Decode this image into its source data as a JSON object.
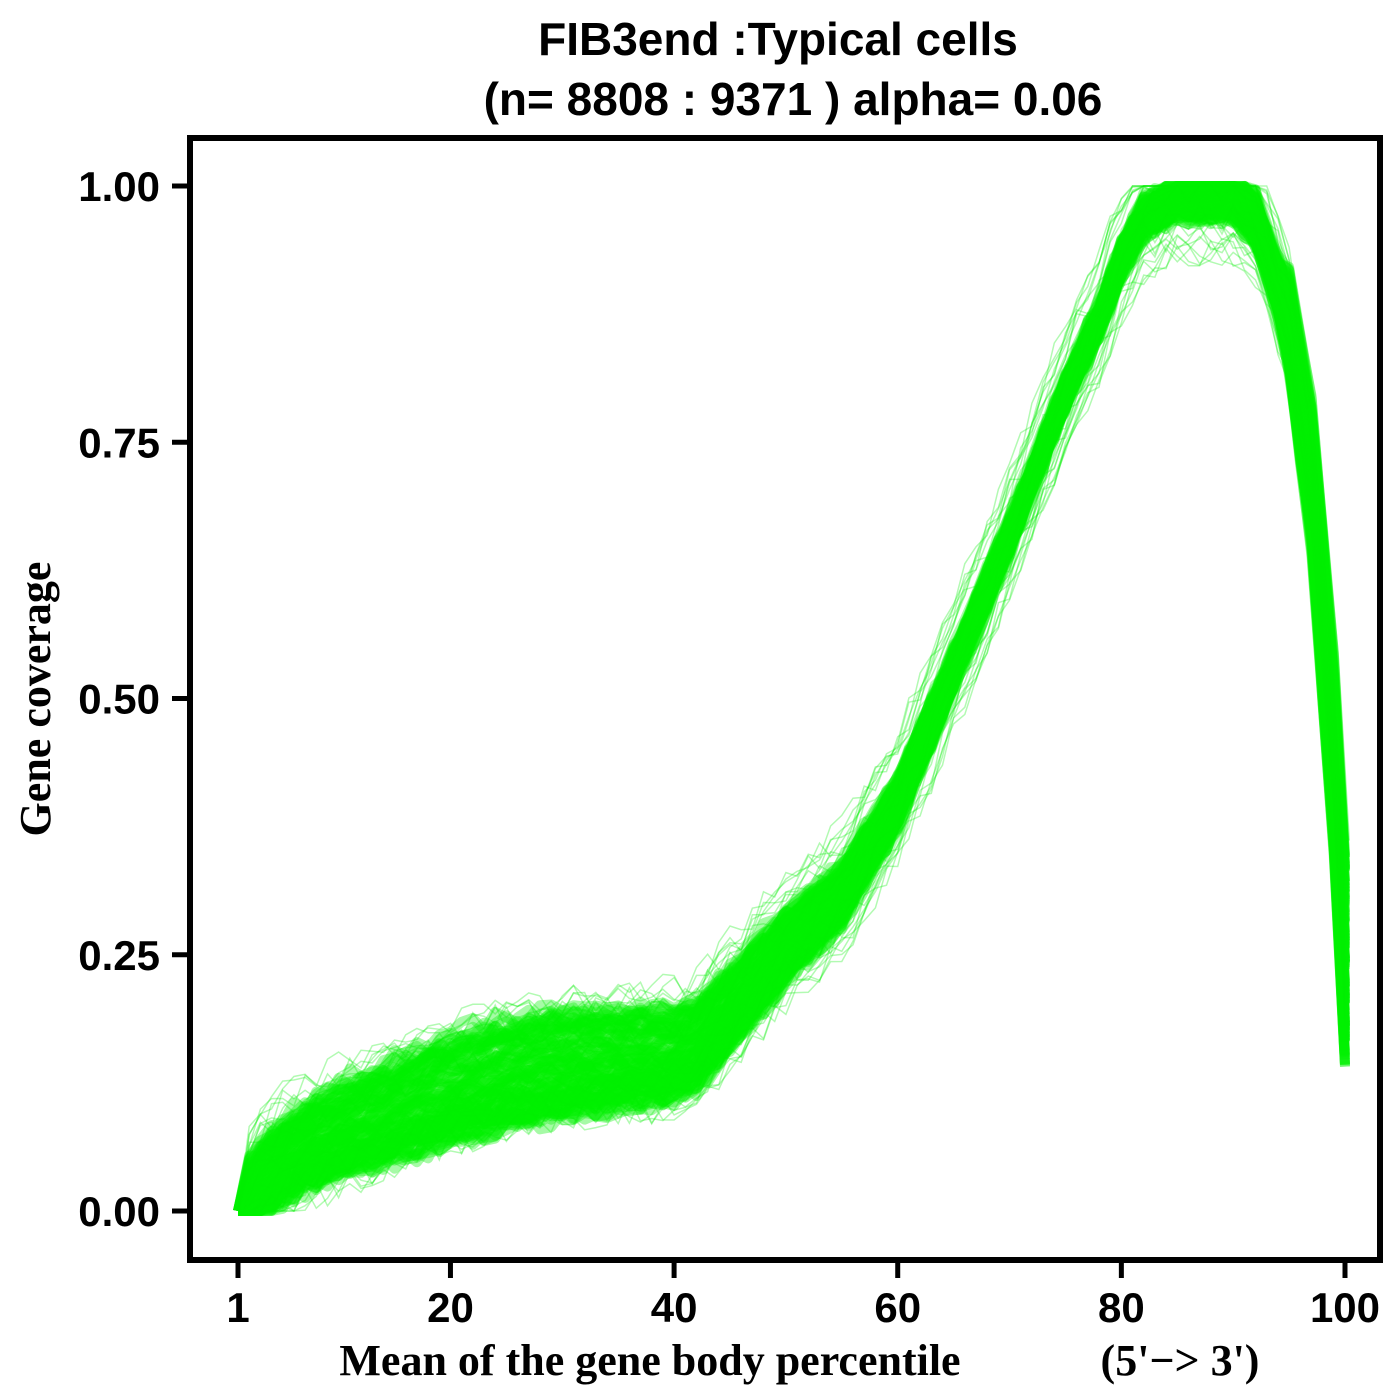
{
  "chart_data": {
    "type": "line",
    "title": "FIB3end :Typical cells",
    "subtitle": "(n= 8808 : 9371 ) alpha= 0.06",
    "xlabel": "Mean of the gene body percentile",
    "xlabel_suffix": "(5'−> 3')",
    "ylabel": "Gene coverage",
    "xlim": [
      1,
      100
    ],
    "ylim": [
      0,
      1
    ],
    "xticks": [
      1,
      20,
      40,
      60,
      80,
      100
    ],
    "xtick_labels": [
      "1",
      "20",
      "40",
      "60",
      "80",
      "100"
    ],
    "yticks": [
      0,
      0.25,
      0.5,
      0.75,
      1
    ],
    "ytick_labels": [
      "0.00",
      "0.25",
      "0.50",
      "0.75",
      "1.00"
    ],
    "grid": false,
    "series_color": "#00f000",
    "series": [
      {
        "x": [
          1,
          3,
          5,
          8,
          10,
          15,
          20,
          25,
          30,
          35,
          40,
          42,
          45,
          50,
          55,
          60,
          65,
          70,
          75,
          78,
          80,
          82,
          85,
          88,
          90,
          92,
          95,
          97,
          99,
          100
        ],
        "values": [
          0.0,
          0.03,
          0.05,
          0.07,
          0.08,
          0.1,
          0.12,
          0.135,
          0.145,
          0.15,
          0.155,
          0.165,
          0.2,
          0.26,
          0.31,
          0.4,
          0.53,
          0.66,
          0.8,
          0.87,
          0.93,
          0.97,
          0.99,
          0.99,
          0.99,
          0.97,
          0.87,
          0.72,
          0.45,
          0.25
        ]
      }
    ]
  }
}
